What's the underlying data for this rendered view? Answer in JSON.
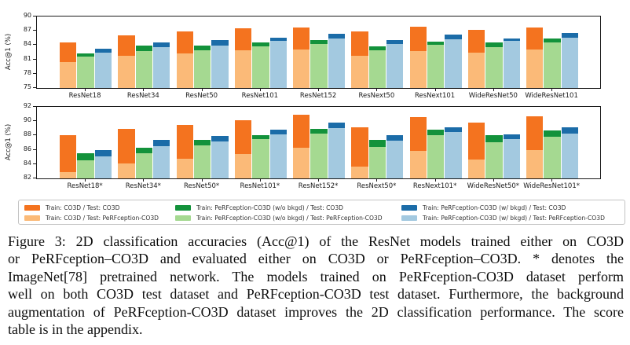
{
  "figure": {
    "caption_lines": [
      "Figure 3: 2D classification accuracies (Acc@1) of the ResNet models trained either on CO3D",
      "or PeRFception–CO3D and evaluated either on CO3D or PeRFception–CO3D. * denotes the",
      "ImageNet[78] pretrained network.  The models trained on PeRFception-CO3D dataset perform",
      "well on both CO3D test dataset and PeRFception-CO3D test dataset. Furthermore, the background",
      "augmentation of PeRFception-CO3D dataset improves the 2D classification performance. The score",
      "table is in the appendix."
    ]
  },
  "colors": {
    "orange_dark": "#f4731f",
    "orange_light": "#fbba78",
    "green_dark": "#13923b",
    "green_light": "#a5d991",
    "blue_dark": "#1b6ca8",
    "blue_light": "#a3c9e0",
    "axis": "#1a1a1a"
  },
  "legend": {
    "columns": [
      [
        {
          "swatch": "orange_dark",
          "label": "Train: CO3D / Test: CO3D"
        },
        {
          "swatch": "orange_light",
          "label": "Train: CO3D / Test: PeRFception-CO3D"
        }
      ],
      [
        {
          "swatch": "green_dark",
          "label": "Train: PeRFception-CO3D (w/o bkgd) / Test: CO3D"
        },
        {
          "swatch": "green_light",
          "label": "Train: PeRFception-CO3D (w/o bkgd) / Test: PeRFception-CO3D"
        }
      ],
      [
        {
          "swatch": "blue_dark",
          "label": "Train: PeRFception-CO3D (w/ bkgd) / Test: CO3D"
        },
        {
          "swatch": "blue_light",
          "label": "Train: PeRFception-CO3D (w/ bkgd) / Test: PeRFception-CO3D"
        }
      ]
    ]
  },
  "chart_data": [
    {
      "type": "bar",
      "title": "",
      "xlabel": "",
      "ylabel": "Acc@1 (%)",
      "ylim": [
        75,
        90
      ],
      "yticks": [
        75,
        78,
        81,
        84,
        87,
        90
      ],
      "grid": false,
      "legend_position": "shared-below",
      "categories": [
        "ResNet18",
        "ResNet34",
        "ResNet50",
        "ResNet101",
        "ResNet152",
        "ResNext50",
        "ResNext101",
        "WideResNet50",
        "WideResNet101"
      ],
      "series": [
        {
          "name": "Train: CO3D / Test: CO3D",
          "color": "orange_dark",
          "values": [
            84.6,
            86.1,
            86.9,
            87.5,
            87.7,
            86.9,
            87.9,
            87.2,
            87.7
          ]
        },
        {
          "name": "Train: CO3D / Test: PeRFception-CO3D",
          "color": "orange_light",
          "values": [
            80.4,
            81.8,
            82.2,
            82.9,
            83.0,
            81.8,
            82.8,
            82.5,
            83.1
          ]
        },
        {
          "name": "Train: PeRFception-CO3D (w/o bkgd) / Test: CO3D",
          "color": "green_dark",
          "values": [
            82.2,
            83.9,
            83.9,
            84.5,
            85.1,
            83.8,
            84.8,
            84.5,
            85.4
          ]
        },
        {
          "name": "Train: PeRFception-CO3D (w/o bkgd) / Test: PeRFception-CO3D",
          "color": "green_light",
          "values": [
            81.6,
            82.8,
            82.9,
            83.8,
            84.2,
            82.9,
            84.0,
            83.5,
            84.5
          ]
        },
        {
          "name": "Train: PeRFception-CO3D (w/ bkgd) / Test: CO3D",
          "color": "blue_dark",
          "values": [
            83.3,
            84.5,
            85.0,
            85.6,
            86.4,
            85.0,
            86.2,
            85.4,
            86.5
          ]
        },
        {
          "name": "Train: PeRFception-CO3D (w/ bkgd) / Test: PeRFception-CO3D",
          "color": "blue_light",
          "values": [
            82.4,
            83.6,
            83.9,
            84.9,
            85.4,
            84.2,
            85.3,
            84.9,
            85.5
          ]
        }
      ],
      "bar_pairs": [
        {
          "group": "orange",
          "dark": 0,
          "light": 1
        },
        {
          "group": "green",
          "dark": 2,
          "light": 3
        },
        {
          "group": "blue",
          "dark": 4,
          "light": 5
        }
      ]
    },
    {
      "type": "bar",
      "title": "",
      "xlabel": "",
      "ylabel": "Acc@1 (%)",
      "ylim": [
        82,
        92
      ],
      "yticks": [
        82,
        84,
        86,
        88,
        90,
        92
      ],
      "grid": false,
      "legend_position": "shared-below",
      "categories": [
        "ResNet18*",
        "ResNet34*",
        "ResNet50*",
        "ResNet101*",
        "ResNet152*",
        "ResNext50*",
        "ResNext101*",
        "WideResNet50*",
        "WideResNet101*"
      ],
      "series": [
        {
          "name": "Train: CO3D / Test: CO3D",
          "color": "orange_dark",
          "values": [
            88.0,
            88.9,
            89.5,
            90.1,
            90.9,
            89.1,
            90.6,
            89.8,
            90.7
          ]
        },
        {
          "name": "Train: CO3D / Test: PeRFception-CO3D",
          "color": "orange_light",
          "values": [
            82.9,
            84.1,
            84.8,
            85.4,
            86.3,
            83.7,
            85.8,
            84.6,
            86.0
          ]
        },
        {
          "name": "Train: PeRFception-CO3D (w/o bkgd) / Test: CO3D",
          "color": "green_dark",
          "values": [
            85.5,
            86.3,
            87.4,
            88.1,
            88.9,
            87.4,
            88.8,
            88.0,
            88.7
          ]
        },
        {
          "name": "Train: PeRFception-CO3D (w/o bkgd) / Test: PeRFception-CO3D",
          "color": "green_light",
          "values": [
            84.5,
            85.5,
            86.6,
            87.5,
            88.3,
            86.4,
            88.0,
            87.1,
            87.8
          ]
        },
        {
          "name": "Train: PeRFception-CO3D (w/ bkgd) / Test: CO3D",
          "color": "blue_dark",
          "values": [
            86.0,
            87.4,
            87.9,
            88.8,
            89.8,
            88.1,
            89.2,
            88.2,
            89.1
          ]
        },
        {
          "name": "Train: PeRFception-CO3D (w/ bkgd) / Test: PeRFception-CO3D",
          "color": "blue_light",
          "values": [
            85.1,
            86.5,
            87.2,
            88.2,
            89.0,
            87.3,
            88.5,
            87.5,
            88.3
          ]
        }
      ],
      "bar_pairs": [
        {
          "group": "orange",
          "dark": 0,
          "light": 1
        },
        {
          "group": "green",
          "dark": 2,
          "light": 3
        },
        {
          "group": "blue",
          "dark": 4,
          "light": 5
        }
      ]
    }
  ]
}
